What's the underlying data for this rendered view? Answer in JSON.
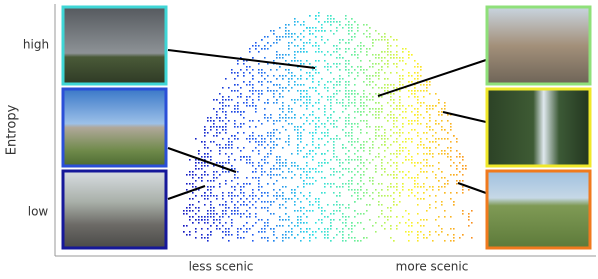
{
  "figure": {
    "y_label": "Entropy",
    "y_levels": [
      "high",
      "low"
    ],
    "x_levels": [
      "less scenic",
      "more scenic"
    ]
  }
}
